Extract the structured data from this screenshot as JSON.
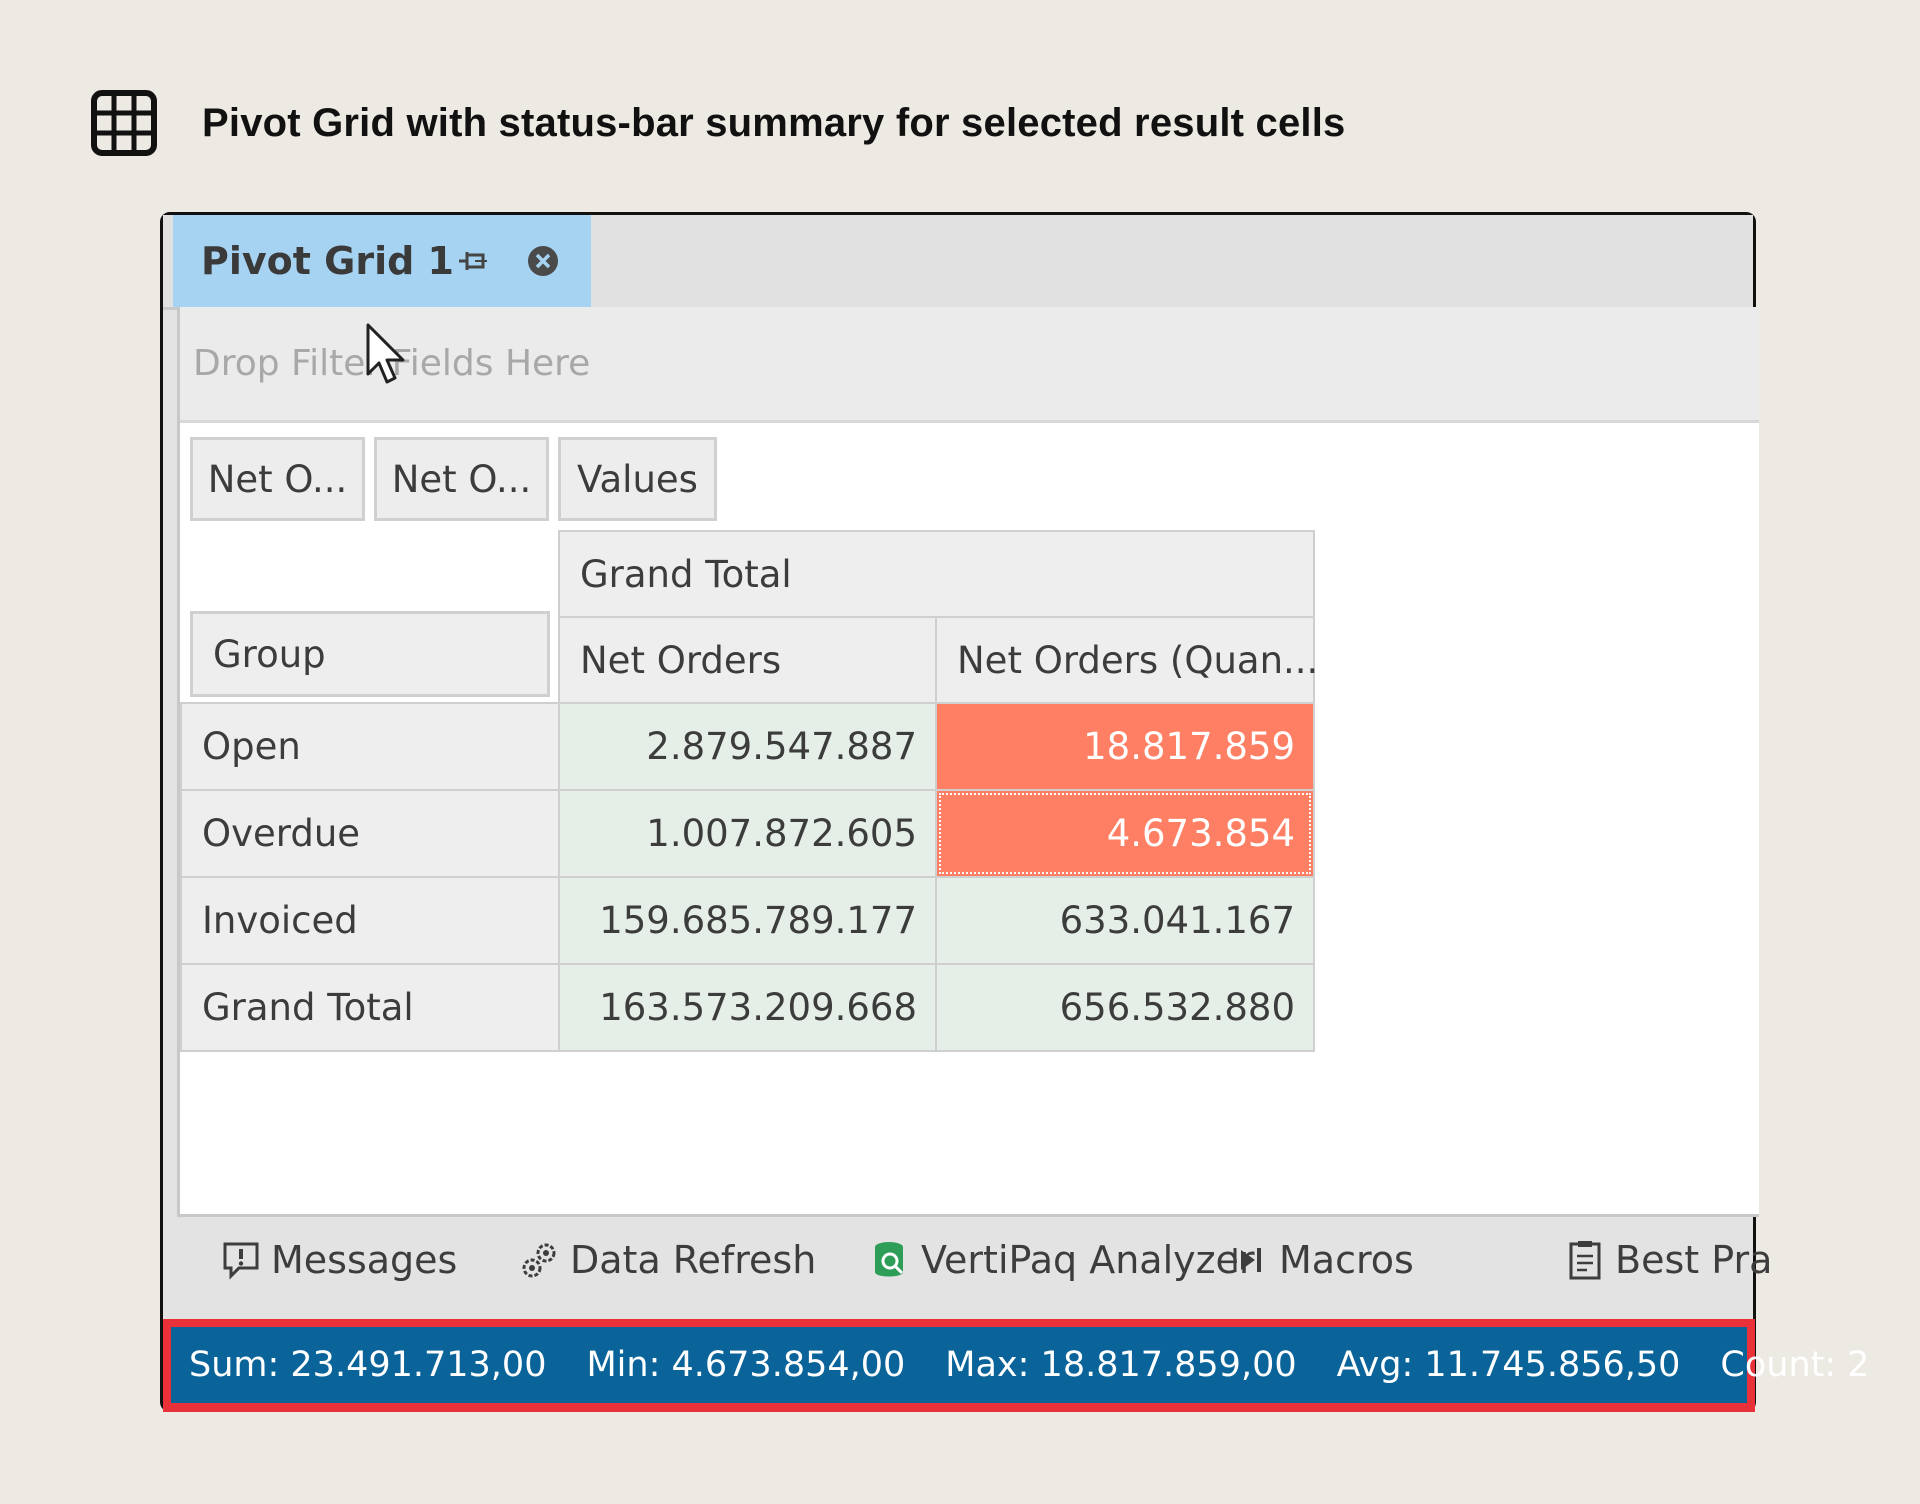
{
  "caption": {
    "title": "Pivot Grid with status-bar summary for selected result cells",
    "icon": "grid-icon"
  },
  "tab": {
    "title": "Pivot Grid 1",
    "pin_icon": "pin-icon",
    "close_icon": "close-icon"
  },
  "filter_area": {
    "placeholder": "Drop Filter Fields Here"
  },
  "field_buttons": [
    "Net O...",
    "Net O...",
    "Values"
  ],
  "pivot": {
    "column_group": "Grand Total",
    "row_header": "Group",
    "columns": [
      "Net Orders",
      "Net Orders (Quan..."
    ],
    "rows": [
      {
        "label": "Open",
        "values": [
          "2.879.547.887",
          "18.817.859"
        ]
      },
      {
        "label": "Overdue",
        "values": [
          "1.007.872.605",
          "4.673.854"
        ]
      },
      {
        "label": "Invoiced",
        "values": [
          "159.685.789.177",
          "633.041.167"
        ]
      },
      {
        "label": "Grand Total",
        "values": [
          "163.573.209.668",
          "656.532.880"
        ]
      }
    ],
    "selection_color": "#FF7F64"
  },
  "toolbar": {
    "items": [
      {
        "label": "Messages",
        "icon": "message-alert-icon"
      },
      {
        "label": "Data Refresh",
        "icon": "gears-icon"
      },
      {
        "label": "VertiPaq Analyzer",
        "icon": "database-search-icon"
      },
      {
        "label": "Macros",
        "icon": "play-step-icon"
      },
      {
        "label": "Best Pra",
        "icon": "clipboard-check-icon"
      }
    ]
  },
  "status_bar": {
    "sum": "Sum: 23.491.713,00",
    "min": "Min: 4.673.854,00",
    "max": "Max: 18.817.859,00",
    "avg": "Avg: 11.745.856,50",
    "count": "Count: 2",
    "background": "#0A6399",
    "highlight_border": "#E9313A"
  }
}
